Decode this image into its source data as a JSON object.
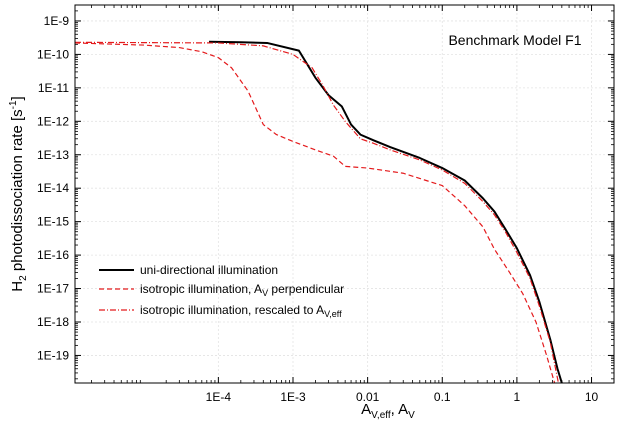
{
  "chart_data": {
    "type": "line",
    "title": "",
    "annotation": "Benchmark Model F1",
    "xlabel": "A_V,eff, A_V",
    "ylabel": "H_2 photodissociation rate [s^-1]",
    "xscale": "log",
    "yscale": "log",
    "xlim": [
      1.2e-06,
      20
    ],
    "ylim": [
      1.5e-20,
      3e-09
    ],
    "grid": true,
    "legend_position": "lower-left",
    "x_ticks": [
      {
        "value": 0.0001,
        "label": "1E-4"
      },
      {
        "value": 0.001,
        "label": "1E-3"
      },
      {
        "value": 0.01,
        "label": "0.01"
      },
      {
        "value": 0.1,
        "label": "0.1"
      },
      {
        "value": 1,
        "label": "1"
      },
      {
        "value": 10,
        "label": "10"
      }
    ],
    "y_ticks": [
      {
        "value": 1e-19,
        "label": "1E-19"
      },
      {
        "value": 1e-18,
        "label": "1E-18"
      },
      {
        "value": 1e-17,
        "label": "1E-17"
      },
      {
        "value": 1e-16,
        "label": "1E-16"
      },
      {
        "value": 1e-15,
        "label": "1E-15"
      },
      {
        "value": 1e-14,
        "label": "1E-14"
      },
      {
        "value": 1e-13,
        "label": "1E-13"
      },
      {
        "value": 1e-12,
        "label": "1E-12"
      },
      {
        "value": 1e-11,
        "label": "1E-11"
      },
      {
        "value": 1e-10,
        "label": "1E-10"
      },
      {
        "value": 1e-09,
        "label": "1E-9"
      }
    ],
    "series": [
      {
        "name": "uni-directional illumination",
        "color": "#000000",
        "style": "solid",
        "points": [
          [
            7.5e-05,
            2.4e-10
          ],
          [
            0.0002,
            2.3e-10
          ],
          [
            0.00045,
            2.2e-10
          ],
          [
            0.0012,
            1.3e-10
          ],
          [
            0.002,
            2e-11
          ],
          [
            0.003,
            6e-12
          ],
          [
            0.0045,
            2.8e-12
          ],
          [
            0.006,
            8e-13
          ],
          [
            0.008,
            4e-13
          ],
          [
            0.012,
            2.7e-13
          ],
          [
            0.02,
            1.7e-13
          ],
          [
            0.05,
            8e-14
          ],
          [
            0.1,
            4e-14
          ],
          [
            0.2,
            1.7e-14
          ],
          [
            0.35,
            5e-15
          ],
          [
            0.5,
            2e-15
          ],
          [
            0.7,
            6e-16
          ],
          [
            1,
            1.6e-16
          ],
          [
            1.5,
            2.5e-17
          ],
          [
            2,
            4e-18
          ],
          [
            2.8,
            3e-19
          ],
          [
            3.5,
            4e-20
          ],
          [
            4,
            1.5e-20
          ]
        ]
      },
      {
        "name": "isotropic illumination, A_V perpendicular",
        "color": "#e41a1c",
        "style": "dashed",
        "points": [
          [
            1.2e-06,
            2.2e-10
          ],
          [
            1e-05,
            1.9e-10
          ],
          [
            3e-05,
            1.6e-10
          ],
          [
            6e-05,
            1.2e-10
          ],
          [
            0.0001,
            8e-11
          ],
          [
            0.00015,
            4e-11
          ],
          [
            0.00025,
            8e-12
          ],
          [
            0.0004,
            8e-13
          ],
          [
            0.0006,
            4e-13
          ],
          [
            0.001,
            2.5e-13
          ],
          [
            0.002,
            1.4e-13
          ],
          [
            0.0035,
            9e-14
          ],
          [
            0.005,
            4.5e-14
          ],
          [
            0.01,
            4e-14
          ],
          [
            0.03,
            2.8e-14
          ],
          [
            0.1,
            1.2e-14
          ],
          [
            0.2,
            3e-15
          ],
          [
            0.35,
            7e-16
          ],
          [
            0.5,
            1.5e-16
          ],
          [
            0.8,
            3e-17
          ],
          [
            1.2,
            7e-18
          ],
          [
            1.8,
            1e-18
          ],
          [
            2.5,
            1e-19
          ],
          [
            3.2,
            1.5e-20
          ]
        ]
      },
      {
        "name": "isotropic illumination, rescaled to A_V,eff",
        "color": "#e41a1c",
        "style": "dashdot",
        "points": [
          [
            1.2e-06,
            2.3e-10
          ],
          [
            0.0001,
            2.2e-10
          ],
          [
            0.0004,
            1.8e-10
          ],
          [
            0.001,
            1e-10
          ],
          [
            0.0018,
            4e-11
          ],
          [
            0.0025,
            1.2e-11
          ],
          [
            0.0035,
            3e-12
          ],
          [
            0.005,
            1e-12
          ],
          [
            0.008,
            3e-13
          ],
          [
            0.012,
            2.2e-13
          ],
          [
            0.02,
            1.4e-13
          ],
          [
            0.05,
            7e-14
          ],
          [
            0.1,
            3.5e-14
          ],
          [
            0.2,
            1.4e-14
          ],
          [
            0.35,
            4e-15
          ],
          [
            0.5,
            1.6e-15
          ],
          [
            0.7,
            5e-16
          ],
          [
            1,
            1.2e-16
          ],
          [
            1.5,
            2e-17
          ],
          [
            2,
            3e-18
          ],
          [
            2.8,
            2.5e-19
          ],
          [
            3.6,
            1.5e-20
          ]
        ]
      }
    ]
  }
}
